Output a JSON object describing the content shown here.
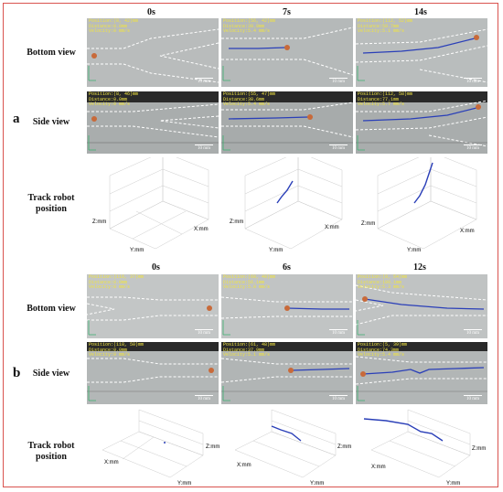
{
  "section_a": {
    "label": "a",
    "times": [
      "0s",
      "7s",
      "14s"
    ],
    "row_labels": {
      "bottom": "Bottom view",
      "side": "Side view",
      "track": "Track robot position"
    },
    "bottom": [
      {
        "position": "Position:(8, 42)mm",
        "distance": "Distance:0.0mm",
        "velocity": "Velocity:0 mm/s",
        "scale": "10 mm"
      },
      {
        "position": "Position:(56, 42)mm",
        "distance": "Distance:39.9mm",
        "velocity": "Velocity:5.4 mm/s",
        "scale": "10 mm"
      },
      {
        "position": "Position:(112, 52)mm",
        "distance": "Distance:58.7mm",
        "velocity": "Velocity:5.1 mm/s",
        "scale": "10 mm"
      }
    ],
    "side": [
      {
        "position": "Position:(8, 46)mm",
        "distance": "Distance:0.0mm",
        "velocity": "Velocity:0 mm/s",
        "scale": "10 mm"
      },
      {
        "position": "Position:(55, 47)mm",
        "distance": "Distance:38.6mm",
        "velocity": "Velocity:5.4 mm/s",
        "scale": "10 mm"
      },
      {
        "position": "Position:(112, 58)mm",
        "distance": "Distance:77.1mm",
        "velocity": "Velocity:5.7 mm/s",
        "scale": "10 mm"
      }
    ],
    "track_axes": {
      "x": "X:mm",
      "y": "Y:mm",
      "z": "Z:mm"
    }
  },
  "section_b": {
    "label": "b",
    "times": [
      "0s",
      "6s",
      "12s"
    ],
    "row_labels": {
      "bottom": "Bottom view",
      "side": "Side view",
      "track": "Track robot position"
    },
    "bottom": [
      {
        "position": "Position:(116, 37)mm",
        "distance": "Distance:0.0mm",
        "velocity": "Velocity:0 mm/s",
        "scale": "10 mm"
      },
      {
        "position": "Position:(60, 40)mm",
        "distance": "Distance:56.1mm",
        "velocity": "Velocity:5.0 mm/s",
        "scale": "10 mm"
      },
      {
        "position": "Position:(8, 54)mm",
        "distance": "Distance:109.1mm",
        "velocity": "Velocity:5.3 mm/s",
        "scale": "10 mm"
      }
    ],
    "side": [
      {
        "position": "Position:(118, 50)mm",
        "distance": "Distance:0.0mm",
        "velocity": "Velocity:0 mm/s",
        "scale": "10 mm"
      },
      {
        "position": "Position:(61, 48)mm",
        "distance": "Distance:37.9mm",
        "velocity": "Velocity:5.1 mm/s",
        "scale": "10 mm"
      },
      {
        "position": "Position:(5, 39)mm",
        "distance": "Distance:74.3mm",
        "velocity": "Velocity:5.4 mm/s",
        "scale": "10 mm"
      }
    ],
    "track_axes": {
      "x": "X:mm",
      "y": "Y:mm",
      "z": "Z:mm"
    }
  },
  "colors": {
    "frame": "#d9534f",
    "info_text": "#f0e442",
    "track": "#2a3fb8",
    "channel_dash": "#ffffff"
  }
}
